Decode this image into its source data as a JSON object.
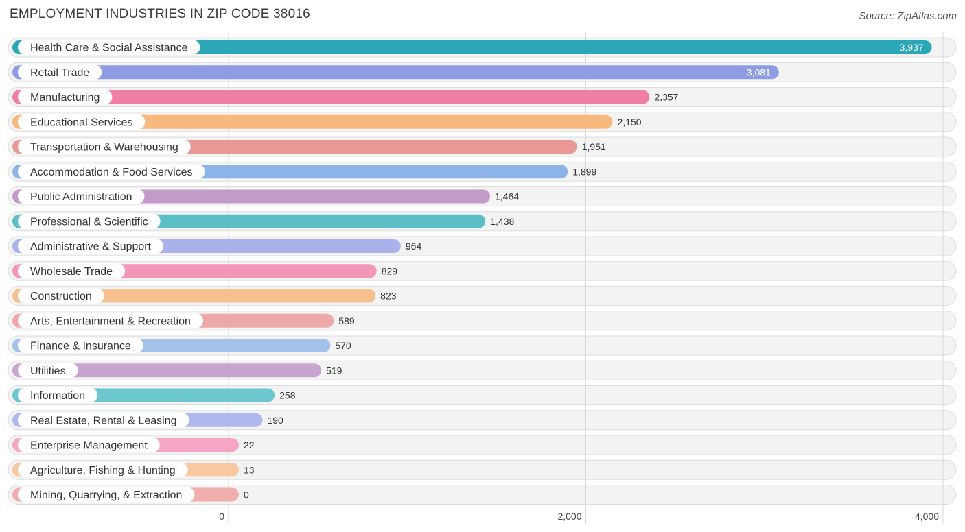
{
  "header": {
    "title": "EMPLOYMENT INDUSTRIES IN ZIP CODE 38016",
    "source": "Source: ZipAtlas.com"
  },
  "chart_data": {
    "type": "bar",
    "orientation": "horizontal",
    "title": "EMPLOYMENT INDUSTRIES IN ZIP CODE 38016",
    "xlabel": "",
    "ylabel": "",
    "xlim": [
      0,
      4000
    ],
    "xticks": [
      0,
      2000,
      4000
    ],
    "xtick_labels": [
      "0",
      "2,000",
      "4,000"
    ],
    "grid": true,
    "categories": [
      "Health Care & Social Assistance",
      "Retail Trade",
      "Manufacturing",
      "Educational Services",
      "Transportation & Warehousing",
      "Accommodation & Food Services",
      "Public Administration",
      "Professional & Scientific",
      "Administrative & Support",
      "Wholesale Trade",
      "Construction",
      "Arts, Entertainment & Recreation",
      "Finance & Insurance",
      "Utilities",
      "Information",
      "Real Estate, Rental & Leasing",
      "Enterprise Management",
      "Agriculture, Fishing & Hunting",
      "Mining, Quarrying, & Extraction"
    ],
    "values": [
      3937,
      3081,
      2357,
      2150,
      1951,
      1899,
      1464,
      1438,
      964,
      829,
      823,
      589,
      570,
      519,
      258,
      190,
      22,
      13,
      0
    ],
    "value_labels": [
      "3,937",
      "3,081",
      "2,357",
      "2,150",
      "1,951",
      "1,899",
      "1,464",
      "1,438",
      "964",
      "829",
      "823",
      "589",
      "570",
      "519",
      "258",
      "190",
      "22",
      "13",
      "0"
    ],
    "colors": [
      "#2ba8b8",
      "#8e9de3",
      "#f07fa6",
      "#f7b97e",
      "#ea9896",
      "#8db4e6",
      "#c29bc9",
      "#5bbfc8",
      "#a9b2ea",
      "#f397b9",
      "#f7c08f",
      "#efa8a8",
      "#a3c2ea",
      "#c7a5cf",
      "#6cc7cf",
      "#b0b9ee",
      "#f6a6c4",
      "#f8c9a0",
      "#f0afad"
    ]
  }
}
